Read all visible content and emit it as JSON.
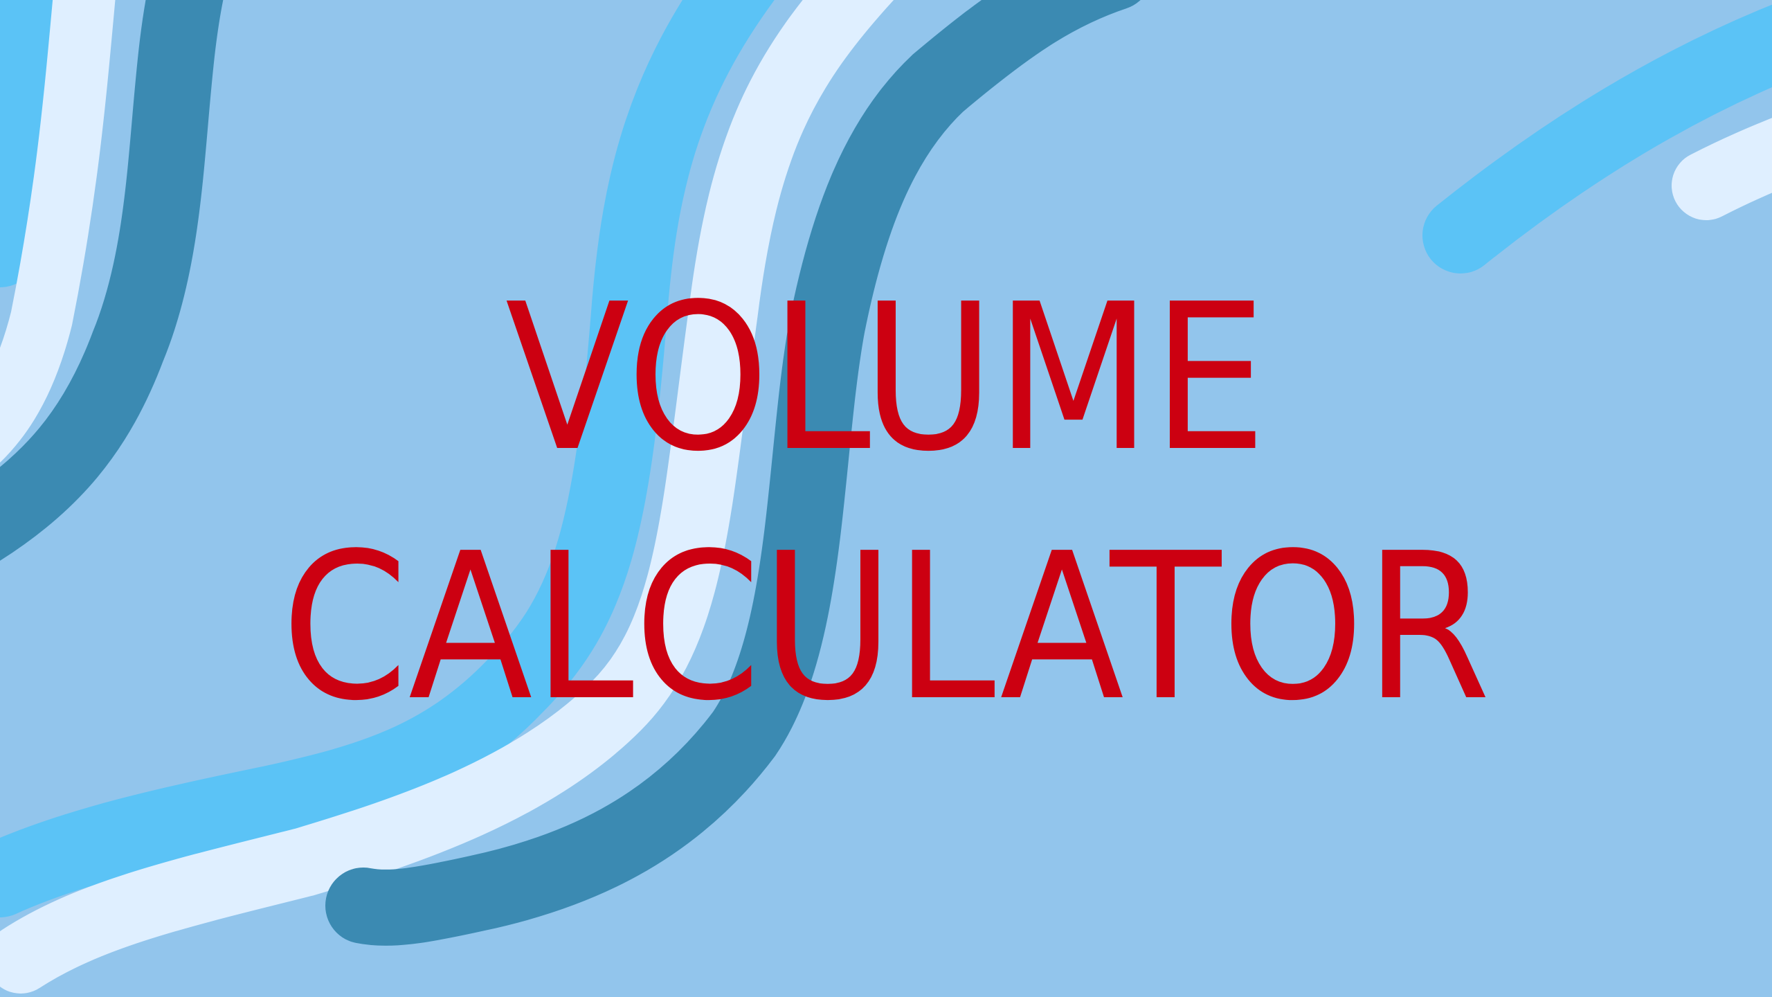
{
  "slide": {
    "title_line_1": "VOLUME",
    "title_line_2": "CALCULATOR"
  },
  "colors": {
    "background": "#92c5ec",
    "title": "#cc0011",
    "stripe_bright_blue": "#5bc3f6",
    "stripe_pale": "#dfefff",
    "stripe_dark_teal": "#3b8ab2"
  },
  "decoration": {
    "description_free": true
  }
}
